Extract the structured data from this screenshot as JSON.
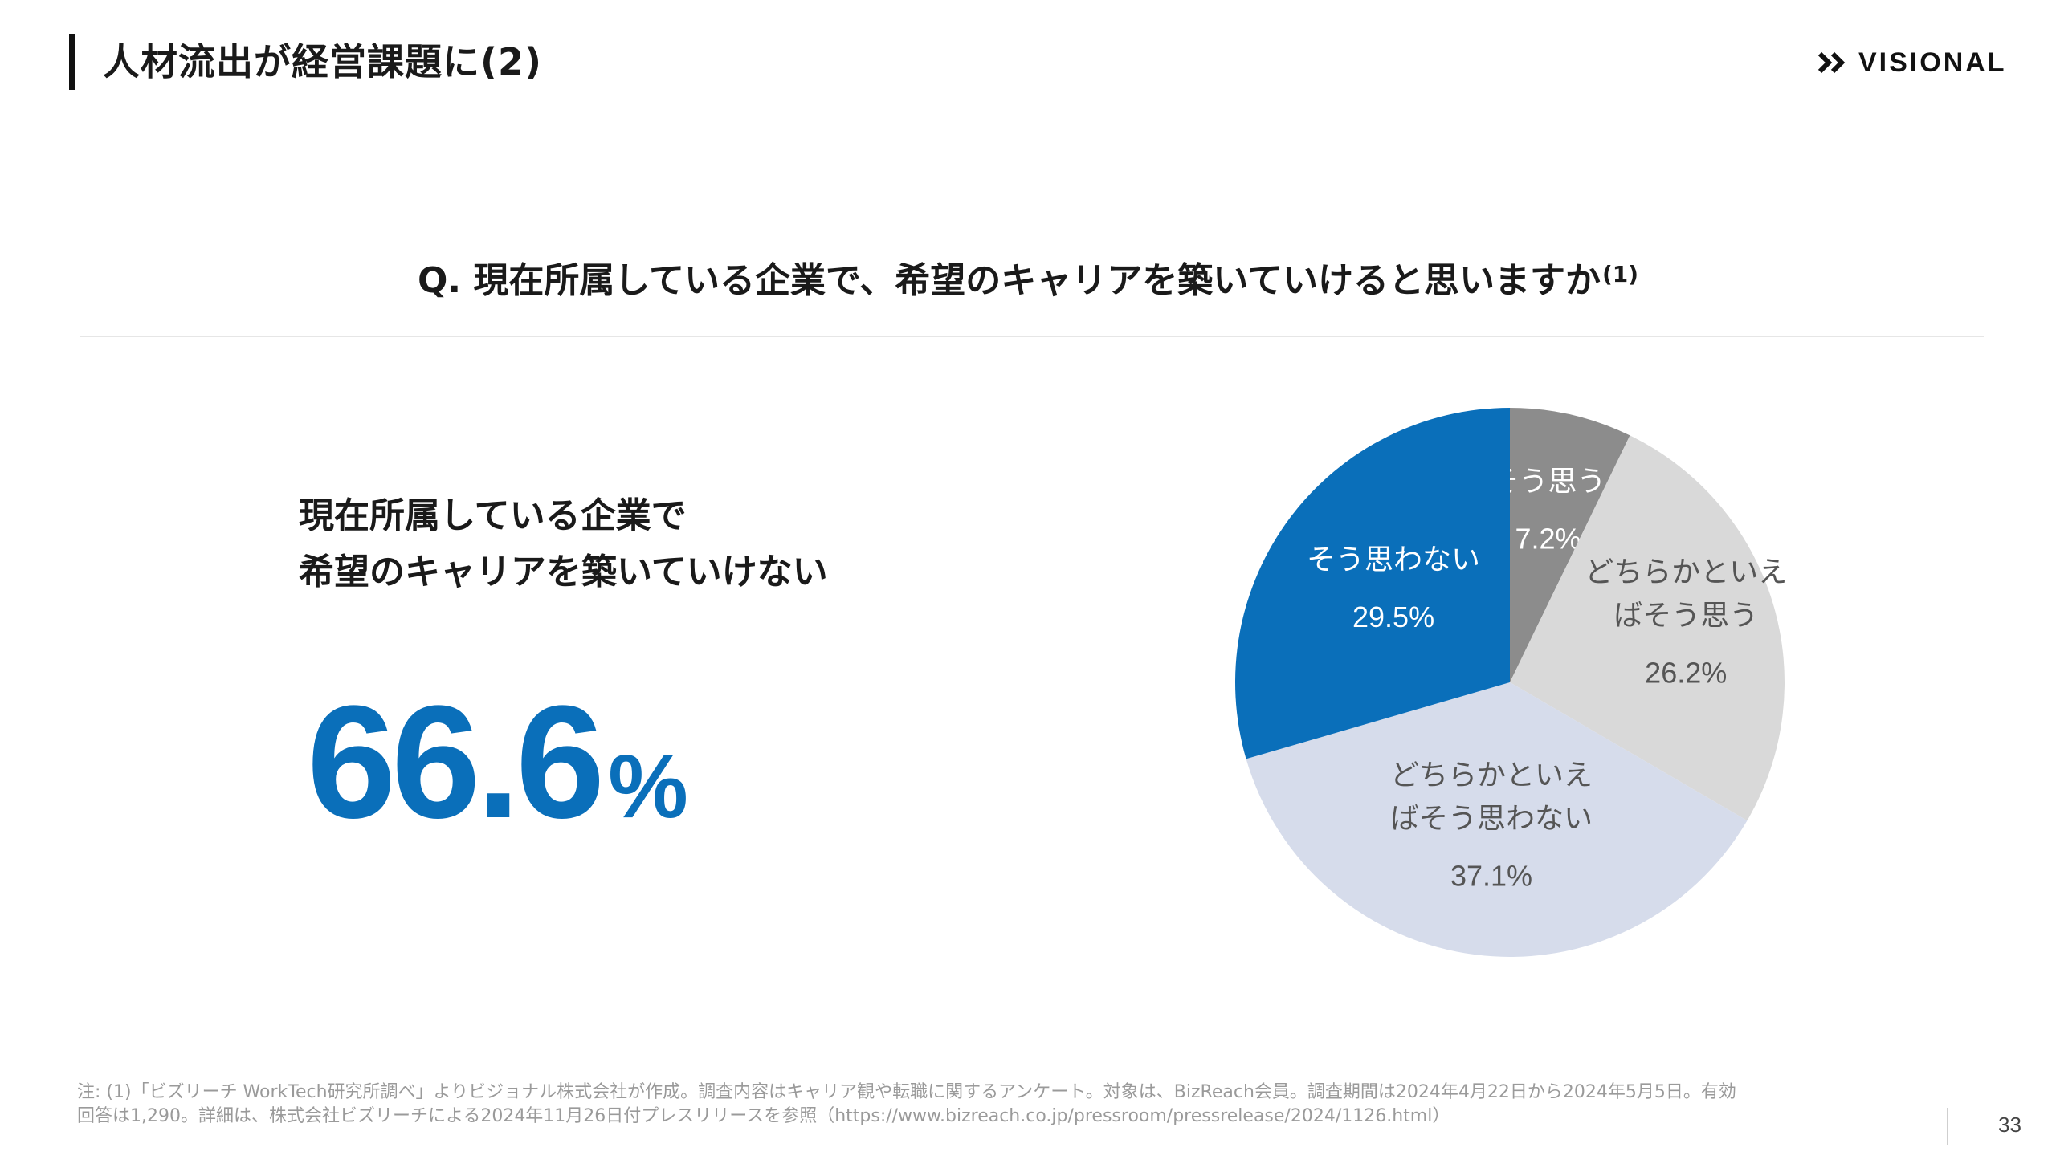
{
  "header": {
    "title": "人材流出が経営課題に(2)",
    "logo_text": "VISIONAL"
  },
  "question": {
    "text": "Q. 現在所属している企業で、希望のキャリアを築いていけると思いますか",
    "footnote_ref": "(1)"
  },
  "highlight": {
    "line1": "現在所属している企業で",
    "line2": "希望のキャリアを築いていけない",
    "value": "66.6",
    "unit": "%"
  },
  "chart_data": {
    "type": "pie",
    "start_angle_deg": 0,
    "direction": "clockwise",
    "slices": [
      {
        "label_lines": [
          "そう思う"
        ],
        "value": 7.2,
        "display": "7.2%",
        "color": "#8c8c8c",
        "text_color": "#ffffff"
      },
      {
        "label_lines": [
          "どちらかといえ",
          "ばそう思う"
        ],
        "value": 26.2,
        "display": "26.2%",
        "color": "#d9d9d9",
        "text_color": "#555555"
      },
      {
        "label_lines": [
          "どちらかといえ",
          "ばそう思わない"
        ],
        "value": 37.1,
        "display": "37.1%",
        "color": "#d6dceb",
        "text_color": "#555555"
      },
      {
        "label_lines": [
          "そう思わない"
        ],
        "value": 29.5,
        "display": "29.5%",
        "color": "#0a6fba",
        "text_color": "#ffffff"
      }
    ]
  },
  "footnote": {
    "line1": "注: (1)「ビズリーチ WorkTech研究所調べ」よりビジョナル株式会社が作成。調査内容はキャリア観や転職に関するアンケート。対象は、BizReach会員。調査期間は2024年4月22日から2024年5月5日。有効",
    "line2": "回答は1,290。詳細は、株式会社ビズリーチによる2024年11月26日付プレスリリースを参照（https://www.bizreach.co.jp/pressroom/pressrelease/2024/1126.html）"
  },
  "page_number": "33"
}
